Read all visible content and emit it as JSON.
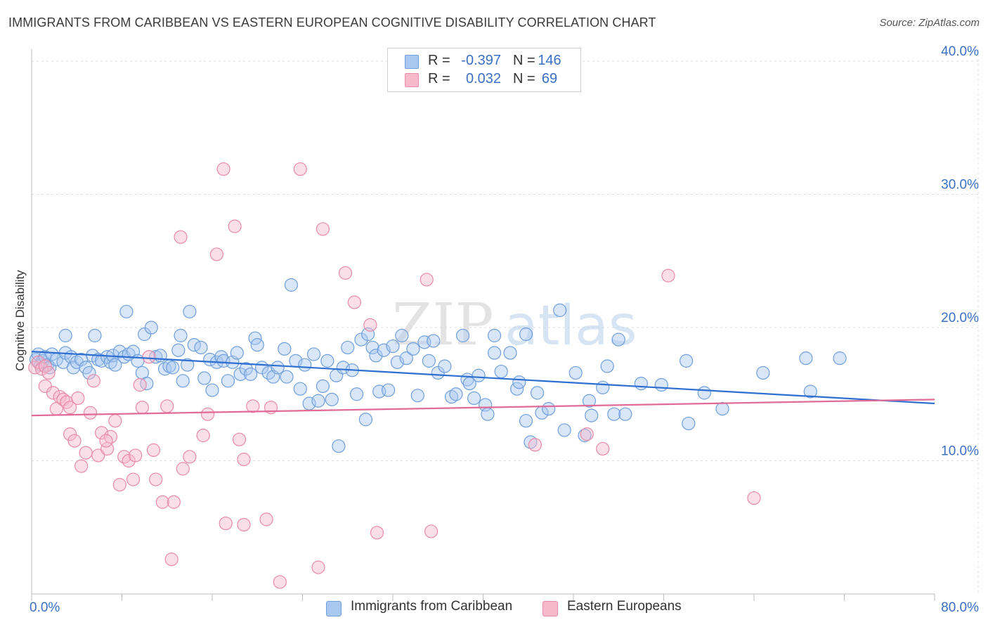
{
  "title": "IMMIGRANTS FROM CARIBBEAN VS EASTERN EUROPEAN COGNITIVE DISABILITY CORRELATION CHART",
  "source": "Source: ZipAtlas.com",
  "watermark": {
    "zip": "ZIP",
    "atlas": "atlas"
  },
  "legend_top": [
    {
      "r_label": "R =",
      "r_value": "-0.397",
      "n_label": "N =",
      "n_value": "146"
    },
    {
      "r_label": "R =",
      "r_value": "0.032",
      "n_label": "N =",
      "n_value": "69"
    }
  ],
  "legend_bottom": [
    {
      "label": "Immigrants from Caribbean"
    },
    {
      "label": "Eastern Europeans"
    }
  ],
  "colors": {
    "blue_fill": "#a9c8f0",
    "blue_stroke": "#6f9fdc",
    "blue_line": "#2f6fd0",
    "pink_fill": "#f6b8cb",
    "pink_stroke": "#e88aa8",
    "pink_line": "#e06b97",
    "tick_label": "#3a6fc4",
    "grid": "#dcdcdc"
  },
  "chart_data": {
    "type": "scatter",
    "xlabel": "",
    "ylabel": "Cognitive Disability",
    "xlim": [
      0,
      80
    ],
    "ylim": [
      0,
      40.9
    ],
    "x_tick_labels": [
      {
        "value": 0,
        "label": "0.0%"
      },
      {
        "value": 80,
        "label": "80.0%"
      }
    ],
    "y_tick_labels": [
      {
        "value": 10,
        "label": "10.0%"
      },
      {
        "value": 20,
        "label": "20.0%"
      },
      {
        "value": 30,
        "label": "30.0%"
      },
      {
        "value": 40,
        "label": "40.0%"
      }
    ],
    "grid": true,
    "legend_placement": "top-center",
    "series": [
      {
        "name": "Immigrants from Caribbean",
        "color": "#a9c8f0",
        "trend": {
          "x": [
            0,
            80
          ],
          "y": [
            18.2,
            14.3
          ]
        },
        "points": [
          [
            0.4,
            17.6
          ],
          [
            0.6,
            18.0
          ],
          [
            0.8,
            17.2
          ],
          [
            1.0,
            17.5
          ],
          [
            1.2,
            17.8
          ],
          [
            1.4,
            17.2
          ],
          [
            1.6,
            17.0
          ],
          [
            1.8,
            18.0
          ],
          [
            2.2,
            17.6
          ],
          [
            2.8,
            17.4
          ],
          [
            3.0,
            18.1
          ],
          [
            3.0,
            19.4
          ],
          [
            3.5,
            17.8
          ],
          [
            3.7,
            17.0
          ],
          [
            4.0,
            17.4
          ],
          [
            4.4,
            17.6
          ],
          [
            4.8,
            17.0
          ],
          [
            5.1,
            16.6
          ],
          [
            5.4,
            17.9
          ],
          [
            5.6,
            19.4
          ],
          [
            5.9,
            17.6
          ],
          [
            6.2,
            17.5
          ],
          [
            6.7,
            17.8
          ],
          [
            7.0,
            17.4
          ],
          [
            7.2,
            17.9
          ],
          [
            7.4,
            17.2
          ],
          [
            7.8,
            18.2
          ],
          [
            8.2,
            17.8
          ],
          [
            8.6,
            18.0
          ],
          [
            8.4,
            21.2
          ],
          [
            9.0,
            18.2
          ],
          [
            9.4,
            17.5
          ],
          [
            9.8,
            16.6
          ],
          [
            10.0,
            19.5
          ],
          [
            10.2,
            15.8
          ],
          [
            10.6,
            20.0
          ],
          [
            11.0,
            17.8
          ],
          [
            11.4,
            17.9
          ],
          [
            11.8,
            16.9
          ],
          [
            12.2,
            17.1
          ],
          [
            12.5,
            17.0
          ],
          [
            13.0,
            18.3
          ],
          [
            13.2,
            19.4
          ],
          [
            13.4,
            16.0
          ],
          [
            13.8,
            17.2
          ],
          [
            14.0,
            21.2
          ],
          [
            14.4,
            18.7
          ],
          [
            15.0,
            18.5
          ],
          [
            15.3,
            16.2
          ],
          [
            15.8,
            17.6
          ],
          [
            16.0,
            15.3
          ],
          [
            16.4,
            17.4
          ],
          [
            16.8,
            17.8
          ],
          [
            17.0,
            17.5
          ],
          [
            17.4,
            16.0
          ],
          [
            17.8,
            17.4
          ],
          [
            18.2,
            18.1
          ],
          [
            18.5,
            16.5
          ],
          [
            19.0,
            16.9
          ],
          [
            19.4,
            16.5
          ],
          [
            19.8,
            19.2
          ],
          [
            20.0,
            18.7
          ],
          [
            20.4,
            17.0
          ],
          [
            21.0,
            16.6
          ],
          [
            21.4,
            16.3
          ],
          [
            21.8,
            17.0
          ],
          [
            22.4,
            18.4
          ],
          [
            22.6,
            16.3
          ],
          [
            23.0,
            23.2
          ],
          [
            23.4,
            17.5
          ],
          [
            23.8,
            15.4
          ],
          [
            24.2,
            17.2
          ],
          [
            24.6,
            14.3
          ],
          [
            25.0,
            18.0
          ],
          [
            25.4,
            14.5
          ],
          [
            25.8,
            15.6
          ],
          [
            26.2,
            17.5
          ],
          [
            26.6,
            14.6
          ],
          [
            27.0,
            16.4
          ],
          [
            27.2,
            11.1
          ],
          [
            27.6,
            17.0
          ],
          [
            28.0,
            18.5
          ],
          [
            28.4,
            16.8
          ],
          [
            28.8,
            15.0
          ],
          [
            29.2,
            19.1
          ],
          [
            29.6,
            13.1
          ],
          [
            29.8,
            19.5
          ],
          [
            30.2,
            18.5
          ],
          [
            30.5,
            17.9
          ],
          [
            30.8,
            15.2
          ],
          [
            31.2,
            18.3
          ],
          [
            31.6,
            15.3
          ],
          [
            32.0,
            18.6
          ],
          [
            32.4,
            17.4
          ],
          [
            32.8,
            19.4
          ],
          [
            33.2,
            17.7
          ],
          [
            33.8,
            18.4
          ],
          [
            34.2,
            14.9
          ],
          [
            34.8,
            18.9
          ],
          [
            35.2,
            17.5
          ],
          [
            35.6,
            19.0
          ],
          [
            36.0,
            16.6
          ],
          [
            36.6,
            17.1
          ],
          [
            37.2,
            14.8
          ],
          [
            37.6,
            15.0
          ],
          [
            38.2,
            19.4
          ],
          [
            38.6,
            16.1
          ],
          [
            38.8,
            15.8
          ],
          [
            39.2,
            14.7
          ],
          [
            39.6,
            16.4
          ],
          [
            40.2,
            14.2
          ],
          [
            40.4,
            13.5
          ],
          [
            41.0,
            19.4
          ],
          [
            41.0,
            18.1
          ],
          [
            41.6,
            16.7
          ],
          [
            42.4,
            18.1
          ],
          [
            43.0,
            15.4
          ],
          [
            43.2,
            15.9
          ],
          [
            43.8,
            19.5
          ],
          [
            43.8,
            13.0
          ],
          [
            44.2,
            11.4
          ],
          [
            44.8,
            15.1
          ],
          [
            45.2,
            13.6
          ],
          [
            45.8,
            13.9
          ],
          [
            46.8,
            21.3
          ],
          [
            47.2,
            12.3
          ],
          [
            48.2,
            16.6
          ],
          [
            49.0,
            11.9
          ],
          [
            49.4,
            14.5
          ],
          [
            49.6,
            13.4
          ],
          [
            50.6,
            15.5
          ],
          [
            51.0,
            17.1
          ],
          [
            51.6,
            13.5
          ],
          [
            52.0,
            19.1
          ],
          [
            52.6,
            13.5
          ],
          [
            54.0,
            15.8
          ],
          [
            55.8,
            15.7
          ],
          [
            58.0,
            17.5
          ],
          [
            58.2,
            12.8
          ],
          [
            59.6,
            15.1
          ],
          [
            61.2,
            13.9
          ],
          [
            64.8,
            16.6
          ],
          [
            68.6,
            17.7
          ],
          [
            69.0,
            15.2
          ],
          [
            71.6,
            17.7
          ]
        ]
      },
      {
        "name": "Eastern Europeans",
        "color": "#f6b8cb",
        "trend": {
          "x": [
            0,
            80
          ],
          "y": [
            13.4,
            14.6
          ]
        },
        "points": [
          [
            0.3,
            17.0
          ],
          [
            0.6,
            17.4
          ],
          [
            0.9,
            16.9
          ],
          [
            1.2,
            17.1
          ],
          [
            1.5,
            16.6
          ],
          [
            1.2,
            15.6
          ],
          [
            1.9,
            15.1
          ],
          [
            2.2,
            13.9
          ],
          [
            2.5,
            14.8
          ],
          [
            2.8,
            14.6
          ],
          [
            3.1,
            14.4
          ],
          [
            3.4,
            14.0
          ],
          [
            3.4,
            12.0
          ],
          [
            3.8,
            11.5
          ],
          [
            4.1,
            14.7
          ],
          [
            4.4,
            9.6
          ],
          [
            4.8,
            10.6
          ],
          [
            5.2,
            13.6
          ],
          [
            5.5,
            16.0
          ],
          [
            5.9,
            10.4
          ],
          [
            6.2,
            12.1
          ],
          [
            6.7,
            10.9
          ],
          [
            7.0,
            11.8
          ],
          [
            6.6,
            11.5
          ],
          [
            7.4,
            13.0
          ],
          [
            7.8,
            8.2
          ],
          [
            8.2,
            10.3
          ],
          [
            8.6,
            10.0
          ],
          [
            9.0,
            8.6
          ],
          [
            9.2,
            10.4
          ],
          [
            9.6,
            15.7
          ],
          [
            9.8,
            14.0
          ],
          [
            10.4,
            17.8
          ],
          [
            10.8,
            10.8
          ],
          [
            11.0,
            8.6
          ],
          [
            11.6,
            6.9
          ],
          [
            12.0,
            14.1
          ],
          [
            12.6,
            6.9
          ],
          [
            12.4,
            2.6
          ],
          [
            13.2,
            26.8
          ],
          [
            13.4,
            9.4
          ],
          [
            14.0,
            10.3
          ],
          [
            15.2,
            11.9
          ],
          [
            15.6,
            13.5
          ],
          [
            16.4,
            25.5
          ],
          [
            17.0,
            31.9
          ],
          [
            17.2,
            5.3
          ],
          [
            18.0,
            27.6
          ],
          [
            18.4,
            11.6
          ],
          [
            18.8,
            5.2
          ],
          [
            18.8,
            10.1
          ],
          [
            19.6,
            14.1
          ],
          [
            20.8,
            5.6
          ],
          [
            21.2,
            14.0
          ],
          [
            22.0,
            0.9
          ],
          [
            23.8,
            31.9
          ],
          [
            25.4,
            2.0
          ],
          [
            25.8,
            27.4
          ],
          [
            27.8,
            24.1
          ],
          [
            28.6,
            21.9
          ],
          [
            30.0,
            20.2
          ],
          [
            30.6,
            4.6
          ],
          [
            35.0,
            23.6
          ],
          [
            35.4,
            4.7
          ],
          [
            44.6,
            11.2
          ],
          [
            49.2,
            12.0
          ],
          [
            50.6,
            10.9
          ],
          [
            56.4,
            23.9
          ],
          [
            64.0,
            7.2
          ]
        ]
      }
    ]
  }
}
